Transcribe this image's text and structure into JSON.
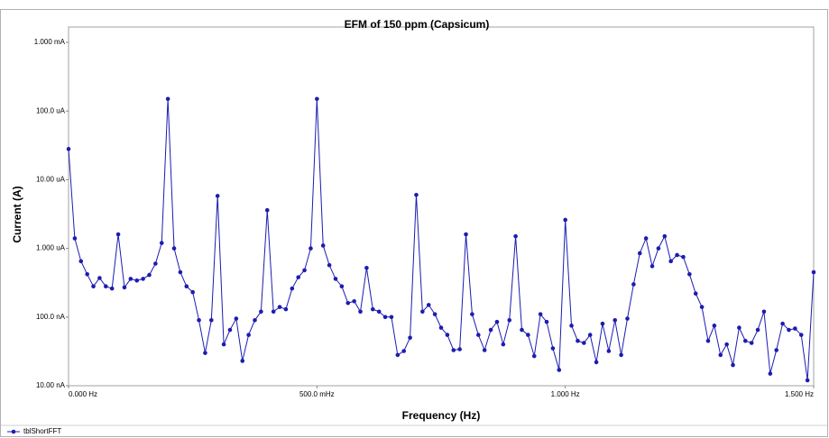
{
  "chart_data": {
    "type": "line",
    "title": "EFM of 150 ppm (Capsicum)",
    "x_label": "Frequency (Hz)",
    "y_label": "Current (A)",
    "log_y": true,
    "grid": false,
    "legend": "bottom-left",
    "xlim": [
      0,
      1.5
    ],
    "xticks": [
      {
        "value": 0,
        "label": "0.000 Hz"
      },
      {
        "value": 0.5,
        "label": "500.0 mHz"
      },
      {
        "value": 1,
        "label": "1.000 Hz"
      },
      {
        "value": 1.5,
        "label": "1.500 Hz"
      }
    ],
    "ylim": [
      1e-08,
      0.001
    ],
    "yticks": [
      {
        "value": 1e-08,
        "label": "10.00 nA"
      },
      {
        "value": 1e-07,
        "label": "100.0 nA"
      },
      {
        "value": 1e-06,
        "label": "1.000 uA"
      },
      {
        "value": 1e-05,
        "label": "10.00 uA"
      },
      {
        "value": 0.0001,
        "label": "100.0 uA"
      },
      {
        "value": 0.001,
        "label": "1.000 mA"
      }
    ],
    "x": [
      0,
      0.0125,
      0.025,
      0.0375,
      0.05,
      0.0625,
      0.075,
      0.0875,
      0.1,
      0.1125,
      0.125,
      0.1375,
      0.15,
      0.1625,
      0.175,
      0.1875,
      0.2,
      0.2125,
      0.225,
      0.2375,
      0.25,
      0.2625,
      0.275,
      0.2875,
      0.3,
      0.3125,
      0.325,
      0.3375,
      0.35,
      0.3625,
      0.375,
      0.3875,
      0.4,
      0.4125,
      0.425,
      0.4375,
      0.45,
      0.4625,
      0.475,
      0.4875,
      0.5,
      0.5125,
      0.525,
      0.5375,
      0.55,
      0.5625,
      0.575,
      0.5875,
      0.6,
      0.6125,
      0.625,
      0.6375,
      0.65,
      0.6625,
      0.675,
      0.6875,
      0.7,
      0.7125,
      0.725,
      0.7375,
      0.75,
      0.7625,
      0.775,
      0.7875,
      0.8,
      0.8125,
      0.825,
      0.8375,
      0.85,
      0.8625,
      0.875,
      0.8875,
      0.9,
      0.9125,
      0.925,
      0.9375,
      0.95,
      0.9625,
      0.975,
      0.9875,
      1,
      1.0125,
      1.025,
      1.0375,
      1.05,
      1.0625,
      1.075,
      1.0875,
      1.1,
      1.1125,
      1.125,
      1.1375,
      1.15,
      1.1625,
      1.175,
      1.1875,
      1.2,
      1.2125,
      1.225,
      1.2375,
      1.25,
      1.2625,
      1.275,
      1.2875,
      1.3,
      1.3125,
      1.325,
      1.3375,
      1.35,
      1.3625,
      1.375,
      1.3875,
      1.4,
      1.4125,
      1.425,
      1.4375,
      1.45,
      1.4625,
      1.475,
      1.4875,
      1.5
    ],
    "series": [
      {
        "name": "tblShortFFT",
        "color": "#1c1cb0",
        "values": [
          2.8e-05,
          1.4e-06,
          6.5e-07,
          4.2e-07,
          2.8e-07,
          3.7e-07,
          2.8e-07,
          2.6e-07,
          1.6e-06,
          2.7e-07,
          3.6e-07,
          3.4e-07,
          3.6e-07,
          4.1e-07,
          6e-07,
          1.2e-06,
          0.00015,
          1e-06,
          4.5e-07,
          2.8e-07,
          2.3e-07,
          9e-08,
          3e-08,
          9e-08,
          5.8e-06,
          4e-08,
          6.5e-08,
          9.5e-08,
          2.3e-08,
          5.5e-08,
          9e-08,
          1.2e-07,
          3.6e-06,
          1.2e-07,
          1.4e-07,
          1.3e-07,
          2.6e-07,
          3.8e-07,
          4.8e-07,
          1e-06,
          0.00015,
          1.1e-06,
          5.7e-07,
          3.6e-07,
          2.8e-07,
          1.6e-07,
          1.7e-07,
          1.2e-07,
          5.2e-07,
          1.3e-07,
          1.2e-07,
          1e-07,
          1e-07,
          2.8e-08,
          3.2e-08,
          5e-08,
          6e-06,
          1.2e-07,
          1.5e-07,
          1.1e-07,
          7e-08,
          5.5e-08,
          3.3e-08,
          3.4e-08,
          1.6e-06,
          1.1e-07,
          5.5e-08,
          3.3e-08,
          6.5e-08,
          8.5e-08,
          4e-08,
          9e-08,
          1.5e-06,
          6.5e-08,
          5.5e-08,
          2.7e-08,
          1.1e-07,
          8.5e-08,
          3.5e-08,
          1.7e-08,
          2.6e-06,
          7.5e-08,
          4.5e-08,
          4.2e-08,
          5.5e-08,
          2.2e-08,
          8e-08,
          3.2e-08,
          9e-08,
          2.8e-08,
          9.5e-08,
          3e-07,
          8.5e-07,
          1.4e-06,
          5.5e-07,
          1e-06,
          1.5e-06,
          6.5e-07,
          8e-07,
          7.5e-07,
          4.2e-07,
          2.2e-07,
          1.4e-07,
          4.5e-08,
          7.5e-08,
          2.8e-08,
          4e-08,
          2e-08,
          7e-08,
          4.5e-08,
          4.2e-08,
          6.5e-08,
          1.2e-07,
          1.5e-08,
          3.3e-08,
          8e-08,
          6.5e-08,
          6.8e-08,
          5.5e-08,
          1.2e-08,
          4.5e-07
        ]
      }
    ]
  }
}
